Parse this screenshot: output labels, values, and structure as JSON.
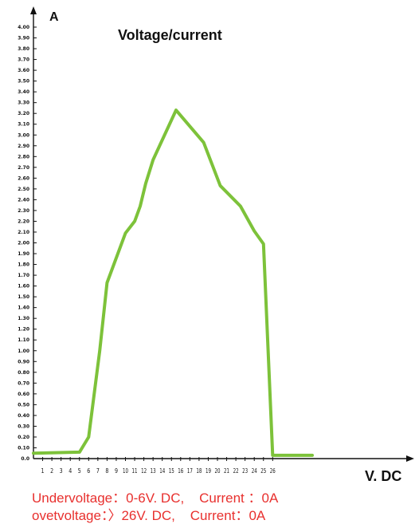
{
  "chart_data": {
    "type": "line",
    "title": "Voltage/current",
    "xlabel": "V. DC",
    "ylabel": "A",
    "xlim": [
      0,
      26
    ],
    "ylim": [
      0,
      4.0
    ],
    "y_ticks": [
      "0.0",
      "0.10",
      "0.20",
      "0.30",
      "0.40",
      "0.50",
      "0.60",
      "0.70",
      "0.80",
      "0.90",
      "1.00",
      "1.10",
      "1.20",
      "1.30",
      "1.40",
      "1.50",
      "1.60",
      "1.70",
      "1.80",
      "1.90",
      "2.00",
      "2.10",
      "2.20",
      "2.30",
      "2.40",
      "2.50",
      "2.60",
      "2.70",
      "2.80",
      "2.90",
      "3.00",
      "3.10",
      "3.20",
      "3.30",
      "3.40",
      "3.50",
      "3.60",
      "3.70",
      "3.80",
      "3.90",
      "4.00"
    ],
    "x_ticks": [
      "1",
      "2",
      "3",
      "4",
      "5",
      "6",
      "7",
      "8",
      "9",
      "10",
      "11",
      "12",
      "13",
      "14",
      "15",
      "16",
      "17",
      "18",
      "19",
      "20",
      "21",
      "22",
      "23",
      "24",
      "25",
      "26"
    ],
    "series": [
      {
        "color": "#7dc23a",
        "x": [
          0,
          5,
          6,
          7.2,
          8,
          10,
          11,
          11.6,
          12.2,
          13,
          15.5,
          18.5,
          20.3,
          22.5,
          24,
          25,
          26,
          30.3
        ],
        "y": [
          0.05,
          0.06,
          0.2,
          1.0,
          1.63,
          2.09,
          2.2,
          2.34,
          2.55,
          2.77,
          3.23,
          2.93,
          2.53,
          2.34,
          2.11,
          1.99,
          0.03,
          0.03
        ]
      }
    ],
    "grid": false,
    "annotations": [
      "Undervoltage：0-6V. DC,    Current ：0A",
      "ovetvoltage：〉26V. DC,    Current：0A"
    ]
  }
}
